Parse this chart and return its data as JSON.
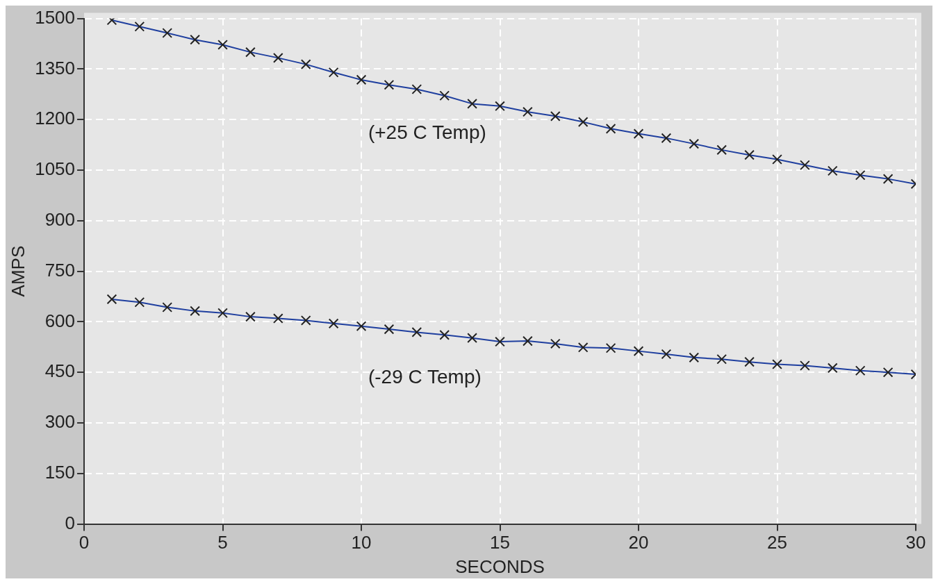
{
  "chart_data": {
    "type": "line",
    "xlabel": "SECONDS",
    "ylabel": "AMPS",
    "x": [
      1,
      2,
      3,
      4,
      5,
      6,
      7,
      8,
      9,
      10,
      11,
      12,
      13,
      14,
      15,
      16,
      17,
      18,
      19,
      20,
      21,
      22,
      23,
      24,
      25,
      26,
      27,
      28,
      29,
      30
    ],
    "series": [
      {
        "color": "#1f3f9f",
        "values": [
          1495,
          1476,
          1457,
          1437,
          1422,
          1400,
          1383,
          1364,
          1340,
          1318,
          1303,
          1290,
          1271,
          1247,
          1240,
          1223,
          1210,
          1193,
          1173,
          1158,
          1145,
          1128,
          1110,
          1095,
          1082,
          1065,
          1048,
          1035,
          1024,
          1009
        ]
      },
      {
        "color": "#1f3f9f",
        "values": [
          667,
          658,
          643,
          632,
          626,
          615,
          610,
          604,
          595,
          587,
          578,
          569,
          561,
          552,
          541,
          543,
          535,
          524,
          522,
          513,
          504,
          494,
          489,
          481,
          474,
          470,
          463,
          455,
          450,
          444
        ]
      }
    ],
    "annotations": [
      "(+25 C Temp)",
      "(-29 C Temp)"
    ],
    "xlim": [
      0,
      30
    ],
    "xticks": [
      0,
      5,
      10,
      15,
      20,
      25,
      30
    ],
    "ylim": [
      0,
      1500
    ],
    "yticks": [
      0,
      150,
      300,
      450,
      600,
      750,
      900,
      1050,
      1200,
      1350,
      1500
    ],
    "grid": true,
    "marker": "cross",
    "line_style": "solid",
    "legend": false
  }
}
